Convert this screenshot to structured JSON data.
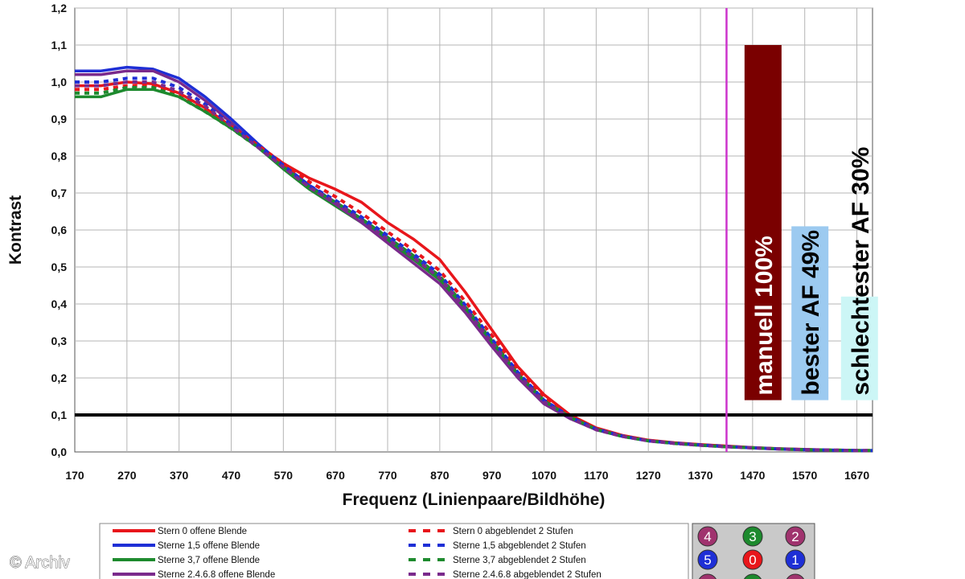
{
  "chart_data": {
    "type": "line",
    "title": "",
    "xlabel": "Frequenz (Linienpaare/Bildhöhe)",
    "ylabel": "Kontrast",
    "xlim": [
      170,
      1700
    ],
    "ylim": [
      0,
      1.2
    ],
    "x_ticks": [
      "170",
      "270",
      "370",
      "470",
      "570",
      "670",
      "770",
      "870",
      "970",
      "1070",
      "1170",
      "1270",
      "1370",
      "1470",
      "1570",
      "1670"
    ],
    "y_ticks": [
      "0,0",
      "0,1",
      "0,2",
      "0,3",
      "0,4",
      "0,5",
      "0,6",
      "0,7",
      "0,8",
      "0,9",
      "1,0",
      "1,1",
      "1,2"
    ],
    "grid": true,
    "reference_line": {
      "y": 0.1,
      "color": "#000000"
    },
    "marker_line": {
      "x": 1420,
      "color": "#cc33cc"
    },
    "series": [
      {
        "name": "Stern 0 offene Blende",
        "color": "#e8161b",
        "dash": false,
        "x": [
          170,
          220,
          270,
          320,
          370,
          420,
          470,
          520,
          570,
          620,
          670,
          720,
          770,
          820,
          870,
          920,
          970,
          1020,
          1070,
          1120,
          1170,
          1220,
          1270,
          1320,
          1370,
          1420,
          1470,
          1520,
          1570,
          1620,
          1670,
          1700
        ],
        "y": [
          0.99,
          0.99,
          1.0,
          0.995,
          0.97,
          0.93,
          0.88,
          0.83,
          0.78,
          0.74,
          0.71,
          0.675,
          0.62,
          0.575,
          0.52,
          0.43,
          0.33,
          0.23,
          0.155,
          0.1,
          0.065,
          0.045,
          0.032,
          0.025,
          0.02,
          0.016,
          0.012,
          0.009,
          0.007,
          0.005,
          0.004,
          0.004
        ]
      },
      {
        "name": "Sterne 1,5 offene Blende",
        "color": "#1e2fd6",
        "dash": false,
        "x": [
          170,
          220,
          270,
          320,
          370,
          420,
          470,
          520,
          570,
          620,
          670,
          720,
          770,
          820,
          870,
          920,
          970,
          1020,
          1070,
          1120,
          1170,
          1220,
          1270,
          1320,
          1370,
          1420,
          1470,
          1520,
          1570,
          1620,
          1670,
          1700
        ],
        "y": [
          1.03,
          1.03,
          1.04,
          1.035,
          1.01,
          0.96,
          0.9,
          0.835,
          0.775,
          0.72,
          0.675,
          0.63,
          0.575,
          0.525,
          0.47,
          0.39,
          0.3,
          0.21,
          0.14,
          0.095,
          0.062,
          0.043,
          0.03,
          0.024,
          0.019,
          0.015,
          0.011,
          0.008,
          0.006,
          0.005,
          0.004,
          0.004
        ]
      },
      {
        "name": "Sterne 3,7 offene Blende",
        "color": "#1d8a2e",
        "dash": false,
        "x": [
          170,
          220,
          270,
          320,
          370,
          420,
          470,
          520,
          570,
          620,
          670,
          720,
          770,
          820,
          870,
          920,
          970,
          1020,
          1070,
          1120,
          1170,
          1220,
          1270,
          1320,
          1370,
          1420,
          1470,
          1520,
          1570,
          1620,
          1670,
          1700
        ],
        "y": [
          0.96,
          0.96,
          0.98,
          0.98,
          0.96,
          0.92,
          0.875,
          0.825,
          0.765,
          0.71,
          0.665,
          0.62,
          0.57,
          0.52,
          0.465,
          0.385,
          0.295,
          0.205,
          0.135,
          0.092,
          0.06,
          0.042,
          0.03,
          0.023,
          0.018,
          0.014,
          0.011,
          0.008,
          0.006,
          0.005,
          0.004,
          0.004
        ]
      },
      {
        "name": "Sterne 2,4,6,8 offene Blende",
        "color": "#7a2a8c",
        "dash": false,
        "x": [
          170,
          220,
          270,
          320,
          370,
          420,
          470,
          520,
          570,
          620,
          670,
          720,
          770,
          820,
          870,
          920,
          970,
          1020,
          1070,
          1120,
          1170,
          1220,
          1270,
          1320,
          1370,
          1420,
          1470,
          1520,
          1570,
          1620,
          1670,
          1700
        ],
        "y": [
          1.02,
          1.02,
          1.03,
          1.03,
          1.0,
          0.95,
          0.89,
          0.825,
          0.77,
          0.715,
          0.67,
          0.62,
          0.565,
          0.51,
          0.455,
          0.375,
          0.285,
          0.2,
          0.13,
          0.09,
          0.06,
          0.042,
          0.03,
          0.023,
          0.018,
          0.014,
          0.011,
          0.008,
          0.006,
          0.005,
          0.004,
          0.004
        ]
      },
      {
        "name": "Stern 0 abgeblendet 2 Stufen",
        "color": "#e8161b",
        "dash": true,
        "x": [
          170,
          220,
          270,
          320,
          370,
          420,
          470,
          520,
          570,
          620,
          670,
          720,
          770,
          820,
          870,
          920,
          970,
          1020,
          1070,
          1120,
          1170,
          1220,
          1270,
          1320,
          1370,
          1420,
          1470,
          1520,
          1570,
          1620,
          1670,
          1700
        ],
        "y": [
          0.98,
          0.98,
          0.99,
          0.99,
          0.965,
          0.925,
          0.88,
          0.83,
          0.78,
          0.73,
          0.69,
          0.645,
          0.595,
          0.545,
          0.49,
          0.405,
          0.315,
          0.22,
          0.145,
          0.098,
          0.063,
          0.044,
          0.031,
          0.024,
          0.019,
          0.015,
          0.011,
          0.008,
          0.006,
          0.005,
          0.004,
          0.004
        ]
      },
      {
        "name": "Sterne 1,5 abgeblendet 2 Stufen",
        "color": "#1e2fd6",
        "dash": true,
        "x": [
          170,
          220,
          270,
          320,
          370,
          420,
          470,
          520,
          570,
          620,
          670,
          720,
          770,
          820,
          870,
          920,
          970,
          1020,
          1070,
          1120,
          1170,
          1220,
          1270,
          1320,
          1370,
          1420,
          1470,
          1520,
          1570,
          1620,
          1670,
          1700
        ],
        "y": [
          1.0,
          1.0,
          1.01,
          1.01,
          0.985,
          0.94,
          0.885,
          0.83,
          0.775,
          0.72,
          0.68,
          0.635,
          0.585,
          0.535,
          0.48,
          0.395,
          0.305,
          0.215,
          0.14,
          0.095,
          0.062,
          0.043,
          0.03,
          0.024,
          0.019,
          0.015,
          0.011,
          0.008,
          0.006,
          0.005,
          0.004,
          0.004
        ]
      },
      {
        "name": "Sterne 3,7 abgeblendet 2 Stufen",
        "color": "#1d8a2e",
        "dash": true,
        "x": [
          170,
          220,
          270,
          320,
          370,
          420,
          470,
          520,
          570,
          620,
          670,
          720,
          770,
          820,
          870,
          920,
          970,
          1020,
          1070,
          1120,
          1170,
          1220,
          1270,
          1320,
          1370,
          1420,
          1470,
          1520,
          1570,
          1620,
          1670,
          1700
        ],
        "y": [
          0.97,
          0.97,
          0.985,
          0.985,
          0.96,
          0.92,
          0.875,
          0.825,
          0.77,
          0.715,
          0.675,
          0.63,
          0.58,
          0.53,
          0.475,
          0.39,
          0.3,
          0.21,
          0.138,
          0.094,
          0.061,
          0.042,
          0.03,
          0.023,
          0.018,
          0.014,
          0.011,
          0.008,
          0.006,
          0.005,
          0.004,
          0.004
        ]
      },
      {
        "name": "Sterne 2,4,6,8 abgeblendet 2 Stufen",
        "color": "#7a2a8c",
        "dash": true,
        "x": [
          170,
          220,
          270,
          320,
          370,
          420,
          470,
          520,
          570,
          620,
          670,
          720,
          770,
          820,
          870,
          920,
          970,
          1020,
          1070,
          1120,
          1170,
          1220,
          1270,
          1320,
          1370,
          1420,
          1470,
          1520,
          1570,
          1620,
          1670,
          1700
        ],
        "y": [
          0.99,
          0.99,
          1.0,
          1.0,
          0.975,
          0.935,
          0.88,
          0.825,
          0.77,
          0.715,
          0.675,
          0.625,
          0.575,
          0.525,
          0.47,
          0.385,
          0.295,
          0.208,
          0.135,
          0.092,
          0.06,
          0.042,
          0.03,
          0.023,
          0.018,
          0.014,
          0.011,
          0.008,
          0.006,
          0.005,
          0.004,
          0.004
        ]
      }
    ],
    "bars": [
      {
        "label": "manuell 100%",
        "value": 1.1,
        "x": 1490,
        "fill": "#7a0000",
        "text_color": "#ffffff"
      },
      {
        "label": "bester AF 49%",
        "value": 0.61,
        "x": 1580,
        "fill": "#9ccaf0",
        "text_color": "#000000"
      },
      {
        "label": "schlechtester AF 30%",
        "value": 0.42,
        "x": 1675,
        "fill": "#ccf6f6",
        "text_color": "#000000"
      }
    ],
    "legend": {
      "placement": "bottom",
      "entries": [
        "Stern 0 offene Blende",
        "Sterne 1,5 offene Blende",
        "Sterne 3,7 offene Blende",
        "Sterne 2.4.6.8 offene Blende",
        "Stern 0 abgeblendet 2 Stufen",
        "Sterne 1,5 abgeblendet 2 Stufen",
        "Sterne 3,7 abgeblendet 2 Stufen",
        "Sterne 2.4.6.8 abgeblendet 2 Stufen"
      ]
    },
    "star_markers": [
      {
        "label": "4",
        "color": "#a0336e"
      },
      {
        "label": "3",
        "color": "#1d8a2e"
      },
      {
        "label": "2",
        "color": "#a0336e"
      },
      {
        "label": "5",
        "color": "#1e2fd6"
      },
      {
        "label": "0",
        "color": "#e8161b"
      },
      {
        "label": "1",
        "color": "#1e2fd6"
      }
    ]
  },
  "watermark": "© Archiv"
}
